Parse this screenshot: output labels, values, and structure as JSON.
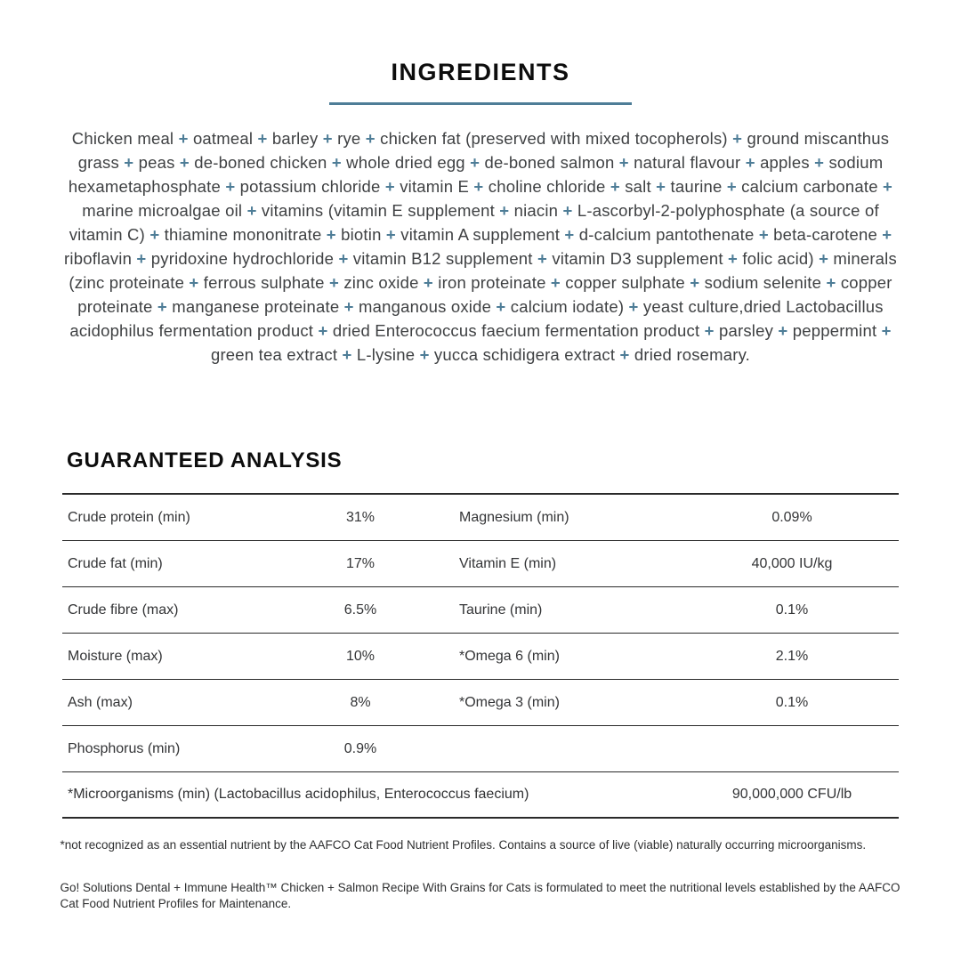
{
  "accent_color": "#4e7d97",
  "ingredients": {
    "title": "INGREDIENTS",
    "separator": "+",
    "items": [
      "Chicken meal",
      "oatmeal",
      "barley",
      "rye",
      "chicken fat (preserved with mixed tocopherols)",
      "ground miscanthus grass",
      "peas",
      "de-boned chicken",
      "whole dried egg",
      "de-boned salmon",
      "natural flavour",
      "apples",
      "sodium hexametaphosphate",
      "potassium chloride",
      "vitamin E",
      "choline chloride",
      "salt",
      "taurine",
      "calcium carbonate",
      "marine microalgae oil",
      "vitamins (vitamin E supplement",
      "niacin",
      "L-ascorbyl-2-polyphosphate (a source of vitamin C)",
      "thiamine mononitrate",
      "biotin",
      "vitamin A supplement",
      "d-calcium pantothenate",
      "beta-carotene",
      "riboflavin",
      "pyridoxine hydrochloride",
      "vitamin B12 supplement",
      "vitamin D3 supplement",
      "folic acid)",
      "minerals (zinc proteinate",
      "ferrous sulphate",
      "zinc oxide",
      "iron proteinate",
      "copper sulphate",
      "sodium selenite",
      "copper proteinate",
      "manganese proteinate",
      "manganous oxide",
      "calcium iodate)",
      "yeast culture,dried Lactobacillus acidophilus fermentation product",
      "dried Enterococcus faecium fermentation product",
      "parsley",
      "peppermint",
      "green tea extract",
      "L-lysine",
      "yucca schidigera extract",
      "dried rosemary."
    ]
  },
  "analysis": {
    "title": "GUARANTEED ANALYSIS",
    "rows": [
      {
        "left_label": "Crude protein (min)",
        "left_value": "31%",
        "right_label": "Magnesium (min)",
        "right_value": "0.09%"
      },
      {
        "left_label": "Crude fat (min)",
        "left_value": "17%",
        "right_label": "Vitamin E (min)",
        "right_value": "40,000 IU/kg"
      },
      {
        "left_label": "Crude fibre (max)",
        "left_value": "6.5%",
        "right_label": "Taurine (min)",
        "right_value": "0.1%"
      },
      {
        "left_label": "Moisture (max)",
        "left_value": "10%",
        "right_label": "*Omega 6 (min)",
        "right_value": "2.1%"
      },
      {
        "left_label": "Ash (max)",
        "left_value": "8%",
        "right_label": "*Omega 3 (min)",
        "right_value": "0.1%"
      },
      {
        "left_label": "Phosphorus (min)",
        "left_value": "0.9%",
        "right_label": "",
        "right_value": ""
      }
    ],
    "full_row": {
      "label": "*Microorganisms (min) (Lactobacillus acidophilus, Enterococcus faecium)",
      "value": "90,000,000 CFU/lb"
    }
  },
  "footnotes": {
    "asterisk_note": "*not recognized as an essential nutrient by the AAFCO Cat Food Nutrient Profiles. Contains a source of live (viable) naturally occurring microorganisms.",
    "aafco_statement": "Go! Solutions Dental + Immune Health™ Chicken + Salmon Recipe With Grains for Cats is formulated to meet the nutritional levels established by the AAFCO Cat Food Nutrient Profiles for Maintenance."
  }
}
